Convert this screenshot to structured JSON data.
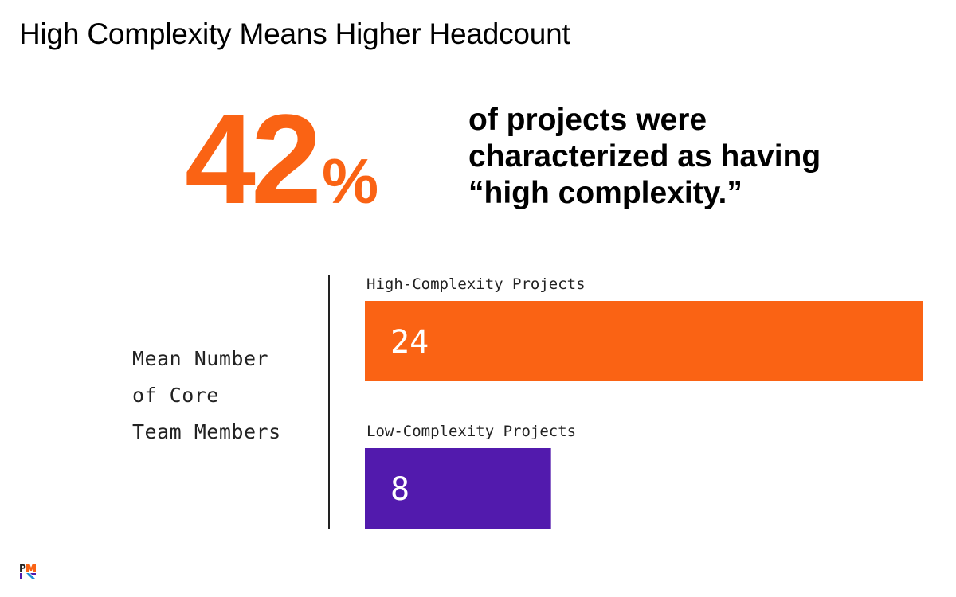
{
  "slide": {
    "title": "High Complexity Means Higher Headcount",
    "stat": {
      "number": "42",
      "unit": "%",
      "caption": [
        "of projects were",
        "characterized as having",
        "“high complexity.”"
      ]
    }
  },
  "chart_data": {
    "type": "bar",
    "orientation": "horizontal",
    "measure_label": [
      "Mean Number",
      "of Core",
      "Team Members"
    ],
    "categories": [
      "High-Complexity Projects",
      "Low-Complexity Projects"
    ],
    "values": [
      24,
      8
    ],
    "value_labels": [
      "24",
      "8"
    ],
    "colors": [
      "#fa6314",
      "#521aad"
    ],
    "xlim": [
      0,
      24
    ],
    "grid": false,
    "legend": "none"
  },
  "logo": {
    "icon": "pmi-logo-icon"
  }
}
